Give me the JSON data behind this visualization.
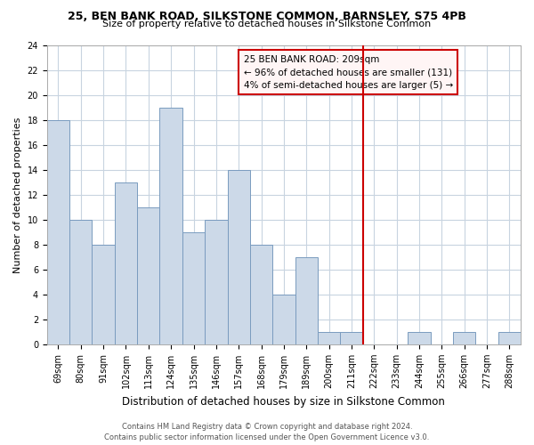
{
  "title1": "25, BEN BANK ROAD, SILKSTONE COMMON, BARNSLEY, S75 4PB",
  "title2": "Size of property relative to detached houses in Silkstone Common",
  "xlabel": "Distribution of detached houses by size in Silkstone Common",
  "ylabel": "Number of detached properties",
  "bar_labels": [
    "69sqm",
    "80sqm",
    "91sqm",
    "102sqm",
    "113sqm",
    "124sqm",
    "135sqm",
    "146sqm",
    "157sqm",
    "168sqm",
    "179sqm",
    "189sqm",
    "200sqm",
    "211sqm",
    "222sqm",
    "233sqm",
    "244sqm",
    "255sqm",
    "266sqm",
    "277sqm",
    "288sqm"
  ],
  "bar_values": [
    18,
    10,
    8,
    13,
    11,
    19,
    9,
    10,
    14,
    8,
    4,
    7,
    1,
    1,
    0,
    0,
    1,
    0,
    1,
    0,
    1
  ],
  "bar_color": "#ccd9e8",
  "bar_edge_color": "#7a9cbf",
  "grid_color": "#c8d4e0",
  "vline_color": "#cc0000",
  "vline_x_index": 13,
  "annotation_box_text_line1": "25 BEN BANK ROAD: 209sqm",
  "annotation_box_text_line2": "← 96% of detached houses are smaller (131)",
  "annotation_box_text_line3": "4% of semi-detached houses are larger (5) →",
  "annotation_box_facecolor": "#fff5f5",
  "annotation_box_edgecolor": "#cc0000",
  "ylim": [
    0,
    24
  ],
  "yticks": [
    0,
    2,
    4,
    6,
    8,
    10,
    12,
    14,
    16,
    18,
    20,
    22,
    24
  ],
  "footer1": "Contains HM Land Registry data © Crown copyright and database right 2024.",
  "footer2": "Contains public sector information licensed under the Open Government Licence v3.0.",
  "title1_fontsize": 9.0,
  "title2_fontsize": 8.0,
  "ylabel_fontsize": 8.0,
  "xlabel_fontsize": 8.5,
  "tick_fontsize": 7.0,
  "footer_fontsize": 6.0
}
